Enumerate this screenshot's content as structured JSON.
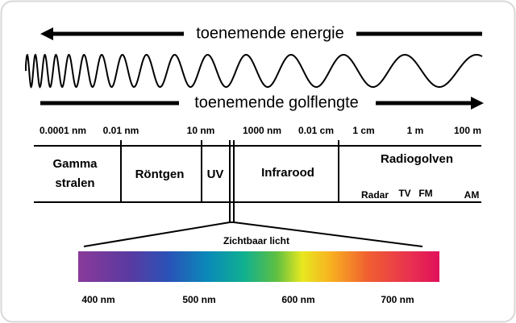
{
  "arrows": {
    "energy": "toenemende energie",
    "wavelength": "toenemende golflengte"
  },
  "scale": [
    "0.0001 nm",
    "0.01 nm",
    "10 nm",
    "1000 nm",
    "0.01 cm",
    "1 cm",
    "1 m",
    "100 m"
  ],
  "regions": {
    "gamma": [
      "Gamma",
      "stralen"
    ],
    "xray": "Röntgen",
    "uv": "UV",
    "infrared": "Infrarood",
    "radio": "Radiogolven"
  },
  "bands": [
    "Radar",
    "TV",
    "FM",
    "AM"
  ],
  "visible": {
    "title": "Zichtbaar licht",
    "ticks": [
      "400 nm",
      "500 nm",
      "600 nm",
      "700 nm"
    ]
  }
}
